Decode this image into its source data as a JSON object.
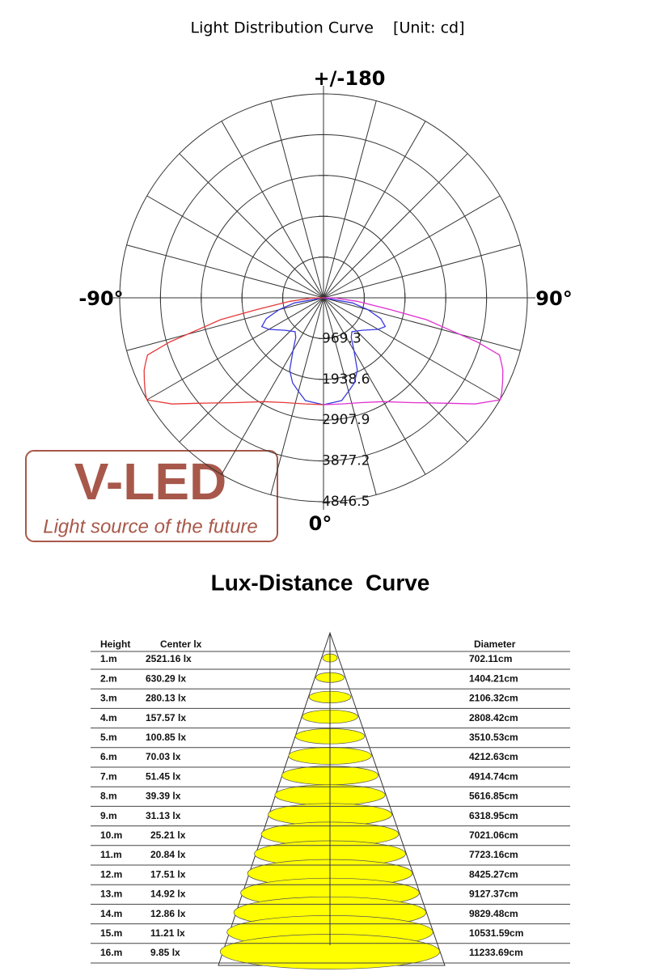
{
  "title": "Light Distribution Curve    [Unit: cd]",
  "chart_data": {
    "type": "polar",
    "angle_labels": {
      "top": "+/-180",
      "left": "-90°",
      "right": "90°",
      "bottom": "0°"
    },
    "rlim": [
      0,
      4846.5
    ],
    "rticks": [
      969.3,
      1938.6,
      2907.9,
      3877.2,
      4846.5
    ],
    "series": [
      {
        "color": "#3a3ae0",
        "angles": [
          -90,
          -80,
          -75,
          -70,
          -65,
          -60,
          -50,
          -40,
          -35,
          -30,
          -25,
          -20,
          -15,
          -10,
          0,
          10,
          15,
          20,
          25,
          30,
          35,
          40,
          50,
          60,
          65,
          70,
          75,
          80,
          90
        ],
        "values": [
          0,
          700,
          1100,
          1450,
          1620,
          1500,
          1200,
          1050,
          1150,
          1450,
          1900,
          2150,
          2300,
          2480,
          2540,
          2480,
          2300,
          2150,
          1900,
          1450,
          1150,
          1050,
          1200,
          1500,
          1620,
          1450,
          1100,
          700,
          0
        ]
      },
      {
        "color": "#e83838",
        "angles": [
          -90,
          -88,
          -84,
          -80,
          -78,
          -76,
          -74,
          -72,
          -70,
          -68,
          -65,
          -62,
          -60,
          -55,
          -50,
          -40,
          -30,
          -20,
          -10,
          0
        ],
        "values": [
          0,
          300,
          800,
          1600,
          2500,
          3000,
          3800,
          4400,
          4500,
          4600,
          4700,
          4800,
          4850,
          4400,
          3900,
          3250,
          2850,
          2650,
          2560,
          2540
        ]
      },
      {
        "color": "#e030d0",
        "angles": [
          0,
          10,
          20,
          30,
          40,
          50,
          55,
          60,
          62,
          65,
          68,
          70,
          72,
          74,
          76,
          78,
          80,
          84,
          88,
          90
        ],
        "values": [
          2540,
          2560,
          2650,
          2850,
          3250,
          3900,
          4400,
          4850,
          4800,
          4700,
          4600,
          4500,
          4400,
          3800,
          3000,
          2500,
          1600,
          800,
          300,
          0
        ]
      }
    ]
  },
  "logo": {
    "name": "V-LED",
    "tagline": "Light source of the future"
  },
  "lux_title": "Lux-Distance  Curve",
  "table": {
    "header": [
      "Height",
      "Center lx",
      "Diameter"
    ],
    "rows": [
      [
        "1.m",
        "2521.16 lx",
        "702.11cm"
      ],
      [
        "2.m",
        "630.29 lx",
        "1404.21cm"
      ],
      [
        "3.m",
        "280.13 lx",
        "2106.32cm"
      ],
      [
        "4.m",
        "157.57 lx",
        "2808.42cm"
      ],
      [
        "5.m",
        "100.85 lx",
        "3510.53cm"
      ],
      [
        "6.m",
        "70.03 lx",
        "4212.63cm"
      ],
      [
        "7.m",
        "51.45 lx",
        "4914.74cm"
      ],
      [
        "8.m",
        "39.39 lx",
        "5616.85cm"
      ],
      [
        "9.m",
        "31.13 lx",
        "6318.95cm"
      ],
      [
        "10.m",
        "25.21 lx",
        "7021.06cm"
      ],
      [
        "11.m",
        "20.84 lx",
        "7723.16cm"
      ],
      [
        "12.m",
        "17.51 lx",
        "8425.27cm"
      ],
      [
        "13.m",
        "14.92 lx",
        "9127.37cm"
      ],
      [
        "14.m",
        "12.86 lx",
        "9829.48cm"
      ],
      [
        "15.m",
        "11.21 lx",
        "10531.59cm"
      ],
      [
        "16.m",
        "9.85 lx",
        "11233.69cm"
      ]
    ]
  }
}
